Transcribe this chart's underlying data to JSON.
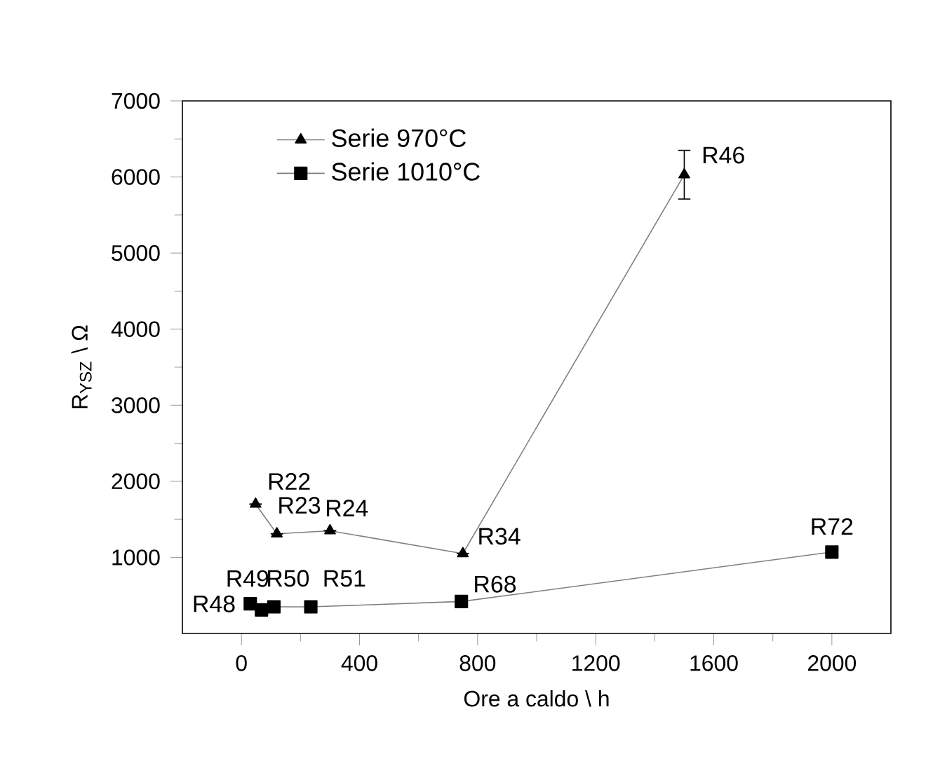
{
  "chart_data": {
    "type": "line",
    "xlabel": "Ore a caldo \\ h",
    "ylabel": "R$_{YSZ}$ \\ Ω",
    "xlim": [
      -200,
      2200
    ],
    "ylim": [
      0,
      7000
    ],
    "xticks": [
      0,
      400,
      800,
      1200,
      1600,
      2000
    ],
    "yticks": [
      1000,
      2000,
      3000,
      4000,
      5000,
      6000,
      7000
    ],
    "legend": "top left",
    "grid": false,
    "line_style": "solid",
    "series": [
      {
        "name": "Serie 970°C",
        "color": "#000000",
        "marker": "triangle",
        "x": [
          48,
          120,
          300,
          750,
          1500
        ],
        "values": [
          1700,
          1310,
          1350,
          1050,
          6030
        ],
        "errors": [
          null,
          null,
          null,
          null,
          320
        ]
      },
      {
        "name": "Serie 1010°C",
        "color": "#000000",
        "marker": "square",
        "x": [
          30,
          68,
          110,
          235,
          745,
          2000
        ],
        "values": [
          390,
          310,
          350,
          350,
          420,
          1070
        ]
      }
    ],
    "annotations": [
      {
        "text": "R22",
        "x": 48,
        "y": 1700
      },
      {
        "text": "R23",
        "x": 120,
        "y": 1310
      },
      {
        "text": "R24",
        "x": 300,
        "y": 1350
      },
      {
        "text": "R34",
        "x": 750,
        "y": 1050
      },
      {
        "text": "R46",
        "x": 1500,
        "y": 6030
      },
      {
        "text": "R48",
        "x": 30,
        "y": 390
      },
      {
        "text": "R49",
        "x": 68,
        "y": 310
      },
      {
        "text": "R50",
        "x": 110,
        "y": 350
      },
      {
        "text": "R51",
        "x": 235,
        "y": 350
      },
      {
        "text": "R68",
        "x": 745,
        "y": 420
      },
      {
        "text": "R72",
        "x": 2000,
        "y": 1070
      }
    ]
  }
}
